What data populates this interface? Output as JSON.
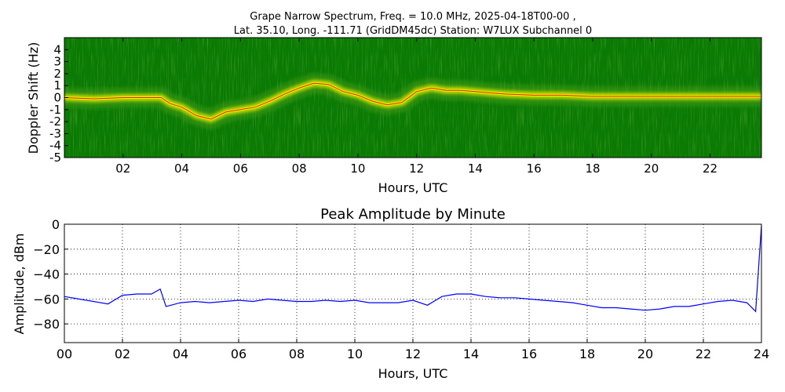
{
  "figure": {
    "title_line1": "Grape Narrow Spectrum, Freq. = 10.0 MHz, 2025-04-18T00-00 ,",
    "title_line2": "Lat.  35.10, Long. -111.71 (GridDM45dc) Station: W7LUX Subchannel 0"
  },
  "chart_data": [
    {
      "type": "heatmap",
      "title": "",
      "xlabel": "Hours, UTC",
      "ylabel": "Doppler Shift (Hz)",
      "xlim": [
        0,
        23.75
      ],
      "ylim": [
        -5,
        5
      ],
      "x_tick_labels": [
        "02",
        "04",
        "06",
        "08",
        "10",
        "12",
        "14",
        "16",
        "18",
        "20",
        "22"
      ],
      "y_tick_labels": [
        "-5",
        "-4",
        "-3",
        "-2",
        "-1",
        "0",
        "1",
        "2",
        "3",
        "4"
      ],
      "colors": {
        "background": "#0a7a04",
        "noise": "#3f9a18",
        "band": "#f2f200",
        "core": "#e02000"
      },
      "doppler_trace": {
        "x": [
          0,
          1,
          2,
          3,
          3.3,
          3.6,
          4,
          4.5,
          5,
          5.5,
          6,
          6.5,
          7,
          7.5,
          8,
          8.5,
          9,
          9.5,
          10,
          10.5,
          11,
          11.5,
          12,
          12.5,
          13,
          13.5,
          14,
          14.5,
          15,
          16,
          17,
          18,
          19,
          20,
          21,
          22,
          23,
          23.75
        ],
        "y": [
          0,
          -0.1,
          0,
          0,
          0,
          -0.5,
          -0.8,
          -1.5,
          -1.8,
          -1.2,
          -1.0,
          -0.8,
          -0.3,
          0.3,
          0.8,
          1.2,
          1.1,
          0.5,
          0.2,
          -0.3,
          -0.6,
          -0.4,
          0.5,
          0.8,
          0.6,
          0.6,
          0.5,
          0.4,
          0.3,
          0.2,
          0.2,
          0.1,
          0.1,
          0.1,
          0.1,
          0.1,
          0.1,
          0.1
        ]
      }
    },
    {
      "type": "line",
      "title": "Peak Amplitude by Minute",
      "xlabel": "Hours, UTC",
      "ylabel": "Amplitude, dBm",
      "xlim": [
        0,
        24
      ],
      "ylim": [
        -95,
        0
      ],
      "grid": true,
      "x_tick_labels": [
        "00",
        "02",
        "04",
        "06",
        "08",
        "10",
        "12",
        "14",
        "16",
        "18",
        "20",
        "22",
        "24"
      ],
      "y_tick_values": [
        0,
        -20,
        -40,
        -60,
        -80
      ],
      "y_tick_labels": [
        "0",
        "−20",
        "−40",
        "−60",
        "−80"
      ],
      "line_color": "#0000ff",
      "series": [
        {
          "x": [
            0,
            0.5,
            1,
            1.5,
            2,
            2.5,
            3,
            3.3,
            3.5,
            4,
            4.5,
            5,
            5.5,
            6,
            6.5,
            7,
            7.5,
            8,
            8.5,
            9,
            9.5,
            10,
            10.5,
            11,
            11.5,
            12,
            12.5,
            13,
            13.5,
            14,
            14.5,
            15,
            15.5,
            16,
            16.5,
            17,
            17.5,
            18,
            18.5,
            19,
            19.5,
            20,
            20.5,
            21,
            21.5,
            22,
            22.5,
            23,
            23.5,
            23.8,
            24
          ],
          "y": [
            -58,
            -60,
            -62,
            -64,
            -57,
            -56,
            -56,
            -52,
            -66,
            -63,
            -62,
            -63,
            -62,
            -61,
            -62,
            -60,
            -61,
            -62,
            -62,
            -61,
            -62,
            -61,
            -63,
            -63,
            -63,
            -61,
            -65,
            -58,
            -56,
            -56,
            -58,
            -59,
            -59,
            -60,
            -61,
            -62,
            -63,
            -65,
            -67,
            -67,
            -68,
            -69,
            -68,
            -66,
            -66,
            -64,
            -62,
            -61,
            -63,
            -70,
            -1
          ]
        }
      ]
    }
  ]
}
